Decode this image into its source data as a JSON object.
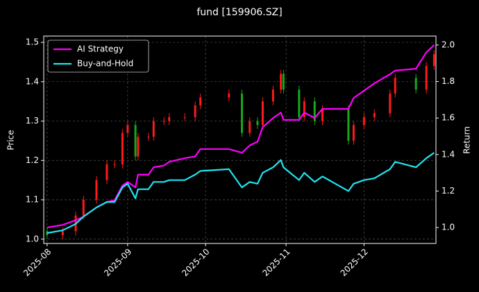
{
  "chart_data": {
    "type": "candlestick",
    "title": "fund [159906.SZ]",
    "ylabel": "Price",
    "y2label": "Return",
    "x": [
      0,
      6,
      11,
      14,
      19,
      23,
      26,
      29,
      31,
      34,
      35,
      39,
      41,
      45,
      47,
      53,
      57,
      59,
      70,
      75,
      78,
      81,
      83,
      87,
      90,
      91,
      97,
      99,
      103,
      106,
      116,
      118,
      122,
      126,
      132,
      134,
      142,
      146,
      149
    ],
    "open": [
      1.02,
      1.01,
      1.02,
      1.06,
      1.1,
      1.15,
      1.19,
      1.19,
      1.27,
      1.29,
      1.21,
      1.26,
      1.26,
      1.3,
      1.3,
      1.31,
      1.31,
      1.34,
      1.36,
      1.37,
      1.27,
      1.3,
      1.29,
      1.35,
      1.38,
      1.42,
      1.38,
      1.31,
      1.35,
      1.3,
      1.33,
      1.25,
      1.29,
      1.31,
      1.32,
      1.37,
      1.41,
      1.38,
      1.44
    ],
    "high": [
      1.03,
      1.03,
      1.07,
      1.11,
      1.16,
      1.2,
      1.2,
      1.28,
      1.3,
      1.3,
      1.27,
      1.27,
      1.31,
      1.31,
      1.32,
      1.32,
      1.35,
      1.37,
      1.38,
      1.38,
      1.31,
      1.31,
      1.36,
      1.39,
      1.43,
      1.43,
      1.39,
      1.36,
      1.36,
      1.34,
      1.34,
      1.3,
      1.32,
      1.33,
      1.38,
      1.42,
      1.42,
      1.45,
      1.48
    ],
    "low": [
      1.0,
      1.0,
      1.01,
      1.05,
      1.09,
      1.14,
      1.18,
      1.18,
      1.26,
      1.2,
      1.2,
      1.25,
      1.25,
      1.29,
      1.29,
      1.3,
      1.3,
      1.33,
      1.35,
      1.26,
      1.26,
      1.28,
      1.28,
      1.34,
      1.37,
      1.37,
      1.3,
      1.3,
      1.29,
      1.29,
      1.24,
      1.24,
      1.28,
      1.3,
      1.31,
      1.36,
      1.37,
      1.37,
      1.43
    ],
    "close": [
      1.01,
      1.02,
      1.06,
      1.1,
      1.15,
      1.19,
      1.19,
      1.27,
      1.29,
      1.21,
      1.26,
      1.26,
      1.3,
      1.3,
      1.31,
      1.31,
      1.34,
      1.36,
      1.37,
      1.27,
      1.3,
      1.29,
      1.35,
      1.38,
      1.42,
      1.38,
      1.31,
      1.35,
      1.3,
      1.33,
      1.25,
      1.29,
      1.31,
      1.32,
      1.37,
      1.41,
      1.38,
      1.44,
      1.47
    ],
    "up_color": "#ff1a1a",
    "down_color": "#18a818",
    "series": [
      {
        "name": "AI Strategy",
        "color": "#ff00ff",
        "axis": "y2",
        "values": [
          1.0,
          1.015,
          1.04,
          1.06,
          1.11,
          1.14,
          1.15,
          1.23,
          1.25,
          1.22,
          1.29,
          1.29,
          1.33,
          1.34,
          1.36,
          1.38,
          1.39,
          1.43,
          1.43,
          1.41,
          1.45,
          1.47,
          1.55,
          1.6,
          1.63,
          1.59,
          1.59,
          1.63,
          1.6,
          1.65,
          1.65,
          1.71,
          1.75,
          1.79,
          1.84,
          1.86,
          1.87,
          1.96,
          2.0
        ]
      },
      {
        "name": "Buy-and-Hold",
        "color": "#1fe6f2",
        "axis": "y2",
        "values": [
          0.97,
          0.985,
          1.02,
          1.06,
          1.11,
          1.14,
          1.14,
          1.22,
          1.24,
          1.16,
          1.21,
          1.21,
          1.25,
          1.25,
          1.26,
          1.26,
          1.29,
          1.31,
          1.32,
          1.22,
          1.25,
          1.24,
          1.3,
          1.33,
          1.37,
          1.33,
          1.26,
          1.3,
          1.25,
          1.28,
          1.2,
          1.24,
          1.26,
          1.27,
          1.32,
          1.36,
          1.33,
          1.38,
          1.41
        ]
      }
    ],
    "xlim": [
      -1.3,
      149.7
    ],
    "xticks": [
      {
        "value": 0,
        "label": "2025-08"
      },
      {
        "value": 31,
        "label": "2025-09"
      },
      {
        "value": 61,
        "label": "2025-10"
      },
      {
        "value": 92,
        "label": "2025-11"
      },
      {
        "value": 122,
        "label": "2025-12"
      }
    ],
    "ylim": [
      0.989,
      1.516
    ],
    "yticks": [
      {
        "value": 1,
        "label": "1.0"
      },
      1.1,
      1.2,
      1.3,
      1.4,
      1.5
    ],
    "y2lim": [
      0.913,
      2.049
    ],
    "y2ticks": [
      {
        "value": 1,
        "label": "1.0"
      },
      1.2,
      1.4,
      1.6,
      1.8,
      {
        "value": 2,
        "label": "2.0"
      }
    ],
    "grid": true,
    "legend": "upper left"
  }
}
